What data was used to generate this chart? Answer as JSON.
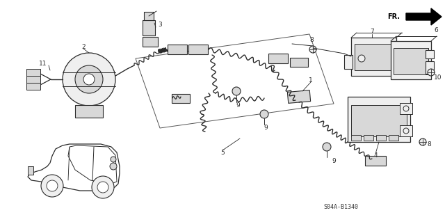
{
  "background_color": "#ffffff",
  "diagram_code": "S04A-B1340",
  "fr_label": "FR.",
  "figure_width": 6.4,
  "figure_height": 3.19,
  "dpi": 100,
  "line_color": "#2a2a2a",
  "gray_fill": "#d8d8d8",
  "light_fill": "#efefef"
}
